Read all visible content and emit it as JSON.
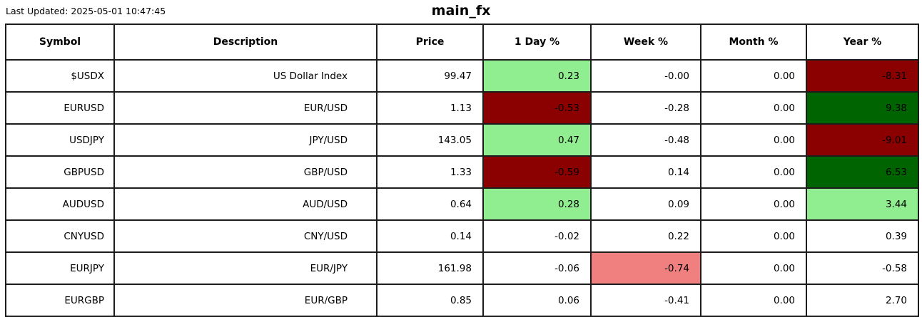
{
  "meta": {
    "last_updated_label": "Last Updated: 2025-05-01 10:47:45",
    "title": "main_fx"
  },
  "colors": {
    "positive_strong": "#006400",
    "positive_mild": "#90EE90",
    "negative_strong": "#8B0000",
    "negative_mild": "#F08080",
    "neutral": "#FFFFFF",
    "border": "#1c1c1c"
  },
  "chart_data": {
    "type": "table",
    "title": "main_fx",
    "columns": [
      "Symbol",
      "Description",
      "Price",
      "1 Day %",
      "Week %",
      "Month %",
      "Year %"
    ],
    "rows": [
      {
        "symbol": "$USDX",
        "description": "US Dollar Index",
        "price": "99.47",
        "pct": [
          {
            "value": "0.23",
            "bg": "positive_mild"
          },
          {
            "value": "-0.00",
            "bg": "neutral"
          },
          {
            "value": "0.00",
            "bg": "neutral"
          },
          {
            "value": "-8.31",
            "bg": "negative_strong"
          }
        ]
      },
      {
        "symbol": "EURUSD",
        "description": "EUR/USD",
        "price": "1.13",
        "pct": [
          {
            "value": "-0.53",
            "bg": "negative_strong"
          },
          {
            "value": "-0.28",
            "bg": "neutral"
          },
          {
            "value": "0.00",
            "bg": "neutral"
          },
          {
            "value": "9.38",
            "bg": "positive_strong"
          }
        ]
      },
      {
        "symbol": "USDJPY",
        "description": "JPY/USD",
        "price": "143.05",
        "pct": [
          {
            "value": "0.47",
            "bg": "positive_mild"
          },
          {
            "value": "-0.48",
            "bg": "neutral"
          },
          {
            "value": "0.00",
            "bg": "neutral"
          },
          {
            "value": "-9.01",
            "bg": "negative_strong"
          }
        ]
      },
      {
        "symbol": "GBPUSD",
        "description": "GBP/USD",
        "price": "1.33",
        "pct": [
          {
            "value": "-0.59",
            "bg": "negative_strong"
          },
          {
            "value": "0.14",
            "bg": "neutral"
          },
          {
            "value": "0.00",
            "bg": "neutral"
          },
          {
            "value": "6.53",
            "bg": "positive_strong"
          }
        ]
      },
      {
        "symbol": "AUDUSD",
        "description": "AUD/USD",
        "price": "0.64",
        "pct": [
          {
            "value": "0.28",
            "bg": "positive_mild"
          },
          {
            "value": "0.09",
            "bg": "neutral"
          },
          {
            "value": "0.00",
            "bg": "neutral"
          },
          {
            "value": "3.44",
            "bg": "positive_mild"
          }
        ]
      },
      {
        "symbol": "CNYUSD",
        "description": "CNY/USD",
        "price": "0.14",
        "pct": [
          {
            "value": "-0.02",
            "bg": "neutral"
          },
          {
            "value": "0.22",
            "bg": "neutral"
          },
          {
            "value": "0.00",
            "bg": "neutral"
          },
          {
            "value": "0.39",
            "bg": "neutral"
          }
        ]
      },
      {
        "symbol": "EURJPY",
        "description": "EUR/JPY",
        "price": "161.98",
        "pct": [
          {
            "value": "-0.06",
            "bg": "neutral"
          },
          {
            "value": "-0.74",
            "bg": "negative_mild"
          },
          {
            "value": "0.00",
            "bg": "neutral"
          },
          {
            "value": "-0.58",
            "bg": "neutral"
          }
        ]
      },
      {
        "symbol": "EURGBP",
        "description": "EUR/GBP",
        "price": "0.85",
        "pct": [
          {
            "value": "0.06",
            "bg": "neutral"
          },
          {
            "value": "-0.41",
            "bg": "neutral"
          },
          {
            "value": "0.00",
            "bg": "neutral"
          },
          {
            "value": "2.70",
            "bg": "neutral"
          }
        ]
      }
    ]
  }
}
